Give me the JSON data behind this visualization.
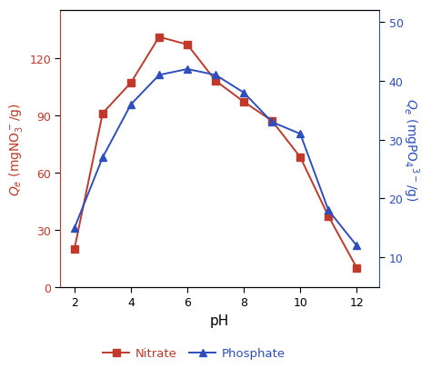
{
  "ph_values": [
    2,
    3,
    4,
    5,
    6,
    7,
    8,
    9,
    10,
    11,
    12
  ],
  "nitrate_values": [
    20,
    91,
    107,
    131,
    127,
    108,
    97,
    87,
    68,
    37,
    10
  ],
  "phosphate_values": [
    15,
    27,
    36,
    41,
    42,
    41,
    38,
    33,
    31,
    18,
    12
  ],
  "nitrate_color": "#c0392b",
  "phosphate_color": "#2e4ebd",
  "nitrate_label": "Nitrate",
  "phosphate_label": "Phosphate",
  "xlabel": "pH",
  "ylabel_left": "$Q_e$ (mgNO$_3^-$/g)",
  "ylabel_right": "$Q_e$ (mgPO$_4$$^{3-}$/g)",
  "ylim_left": [
    0,
    145
  ],
  "ylim_right": [
    5,
    52
  ],
  "yticks_left": [
    0,
    30,
    60,
    90,
    120
  ],
  "yticks_right": [
    10,
    20,
    30,
    40,
    50
  ],
  "xticks": [
    2,
    4,
    6,
    8,
    10,
    12
  ],
  "xlim": [
    1.5,
    12.8
  ],
  "figsize": [
    4.74,
    4.06
  ],
  "dpi": 100
}
